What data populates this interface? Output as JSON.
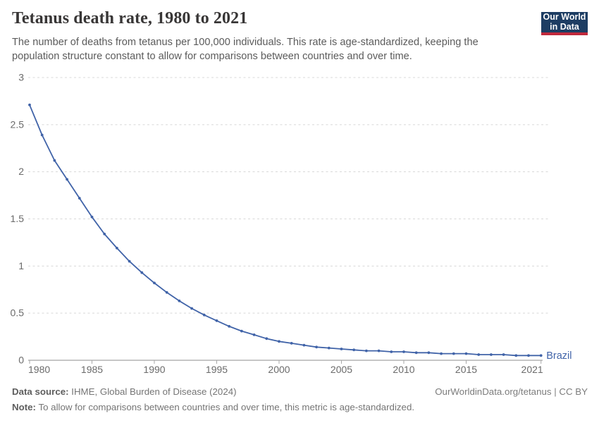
{
  "header": {
    "title": "Tetanus death rate, 1980 to 2021",
    "subtitle": "The number of deaths from tetanus per 100,000 individuals. This rate is age-standardized, keeping the population structure constant to allow for comparisons between countries and over time.",
    "logo": {
      "line1": "Our World",
      "line2": "in Data",
      "bg": "#1d3d63",
      "accent": "#c0293c"
    }
  },
  "chart_data": {
    "type": "line",
    "title": "Tetanus death rate, 1980 to 2021",
    "xlabel": "",
    "ylabel": "",
    "xlim": [
      1980,
      2021
    ],
    "ylim": [
      0,
      3
    ],
    "x_ticks": [
      1980,
      1985,
      1990,
      1995,
      2000,
      2005,
      2010,
      2015,
      2021
    ],
    "y_ticks": [
      0,
      0.5,
      1,
      1.5,
      2,
      2.5,
      3
    ],
    "grid": "horizontal-dashed",
    "legend": "series-end-label",
    "x": [
      1980,
      1981,
      1982,
      1983,
      1984,
      1985,
      1986,
      1987,
      1988,
      1989,
      1990,
      1991,
      1992,
      1993,
      1994,
      1995,
      1996,
      1997,
      1998,
      1999,
      2000,
      2001,
      2002,
      2003,
      2004,
      2005,
      2006,
      2007,
      2008,
      2009,
      2010,
      2011,
      2012,
      2013,
      2014,
      2015,
      2016,
      2017,
      2018,
      2019,
      2020,
      2021
    ],
    "series": [
      {
        "name": "Brazil",
        "color": "#4063a8",
        "values": [
          2.71,
          2.39,
          2.12,
          1.92,
          1.72,
          1.52,
          1.34,
          1.19,
          1.05,
          0.93,
          0.82,
          0.72,
          0.63,
          0.55,
          0.48,
          0.42,
          0.36,
          0.31,
          0.27,
          0.23,
          0.2,
          0.18,
          0.16,
          0.14,
          0.13,
          0.12,
          0.11,
          0.1,
          0.1,
          0.09,
          0.09,
          0.08,
          0.08,
          0.07,
          0.07,
          0.07,
          0.06,
          0.06,
          0.06,
          0.05,
          0.05,
          0.05
        ]
      }
    ]
  },
  "footer": {
    "source_label": "Data source:",
    "source_text": " IHME, Global Burden of Disease (2024)",
    "note_label": "Note:",
    "note_text": " To allow for comparisons between countries and over time, this metric is age-standardized.",
    "link": "OurWorldinData.org/tetanus | CC BY"
  }
}
